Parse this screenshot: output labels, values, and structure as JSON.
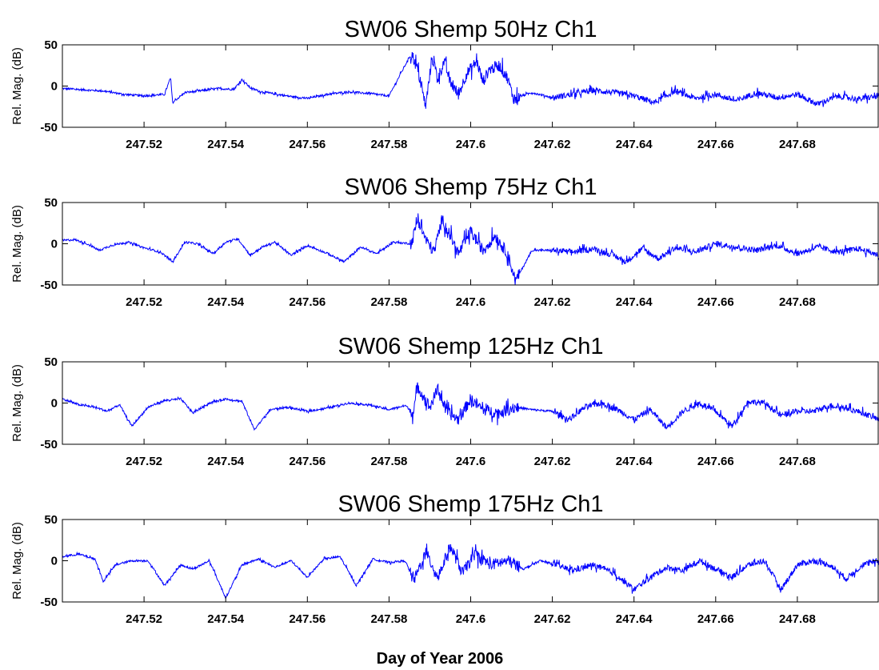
{
  "figure": {
    "xlabel": "Day of Year 2006"
  },
  "chart_data": [
    {
      "type": "line",
      "title": "SW06 Shemp 50Hz Ch1",
      "ylabel": "Rel. Mag. (dB)",
      "xlim": [
        247.5,
        247.7
      ],
      "ylim": [
        -50,
        50
      ],
      "xticks": [
        247.52,
        247.54,
        247.56,
        247.58,
        247.6,
        247.62,
        247.64,
        247.66,
        247.68
      ],
      "xtick_labels": [
        "247.52",
        "247.54",
        "247.56",
        "247.58",
        "247.6",
        "247.62",
        "247.64",
        "247.66",
        "247.68"
      ],
      "yticks": [
        -50,
        0,
        50
      ],
      "ytick_labels": [
        "-50",
        "0",
        "50"
      ],
      "color": "#0000ff",
      "series": [
        {
          "x": [
            247.5,
            247.51,
            247.515,
            247.52,
            247.525,
            247.5265,
            247.527,
            247.53,
            247.535,
            247.538,
            247.542,
            247.544,
            247.546,
            247.548,
            247.55,
            247.555,
            247.56,
            247.565,
            247.57,
            247.575,
            247.58,
            247.5855,
            247.587,
            247.589,
            247.5905,
            247.592,
            247.5935,
            247.595,
            247.597,
            247.599,
            247.6015,
            247.603,
            247.6045,
            247.607,
            247.609,
            247.6105,
            247.615,
            247.62,
            247.625,
            247.63,
            247.635,
            247.64,
            247.645,
            247.65,
            247.655,
            247.66,
            247.665,
            247.67,
            247.675,
            247.68,
            247.685,
            247.69,
            247.695,
            247.7
          ],
          "y": [
            -3,
            -6,
            -10,
            -12,
            -10,
            10,
            -20,
            -8,
            -5,
            -3,
            -4,
            8,
            -2,
            -6,
            -8,
            -12,
            -15,
            -10,
            -7,
            -9,
            -12,
            40,
            20,
            -25,
            35,
            10,
            30,
            5,
            -10,
            15,
            30,
            5,
            20,
            25,
            10,
            -15,
            -8,
            -14,
            -10,
            -5,
            -8,
            -12,
            -20,
            -6,
            -15,
            -10,
            -18,
            -8,
            -14,
            -10,
            -22,
            -12,
            -16,
            -12
          ]
        }
      ]
    },
    {
      "type": "line",
      "title": "SW06 Shemp 75Hz Ch1",
      "ylabel": "Rel. Mag. (dB)",
      "xlim": [
        247.5,
        247.7
      ],
      "ylim": [
        -50,
        50
      ],
      "xticks": [
        247.52,
        247.54,
        247.56,
        247.58,
        247.6,
        247.62,
        247.64,
        247.66,
        247.68
      ],
      "xtick_labels": [
        "247.52",
        "247.54",
        "247.56",
        "247.58",
        "247.6",
        "247.62",
        "247.64",
        "247.66",
        "247.68"
      ],
      "yticks": [
        -50,
        0,
        50
      ],
      "ytick_labels": [
        "-50",
        "0",
        "50"
      ],
      "color": "#0000ff",
      "series": [
        {
          "x": [
            247.5,
            247.503,
            247.506,
            247.509,
            247.512,
            247.516,
            247.52,
            247.524,
            247.527,
            247.53,
            247.533,
            247.537,
            247.54,
            247.543,
            247.546,
            247.549,
            247.552,
            247.556,
            247.56,
            247.565,
            247.569,
            247.573,
            247.577,
            247.581,
            247.5855,
            247.587,
            247.589,
            247.591,
            247.593,
            247.595,
            247.597,
            247.6,
            247.603,
            247.606,
            247.609,
            247.611,
            247.615,
            247.62,
            247.625,
            247.63,
            247.635,
            247.638,
            247.642,
            247.646,
            247.65,
            247.655,
            247.66,
            247.665,
            247.67,
            247.675,
            247.68,
            247.685,
            247.69,
            247.695,
            247.7
          ],
          "y": [
            4,
            5,
            0,
            -8,
            -2,
            2,
            -5,
            -10,
            -22,
            2,
            0,
            -12,
            2,
            6,
            -14,
            -4,
            2,
            -14,
            -2,
            -12,
            -22,
            -4,
            -12,
            2,
            0,
            30,
            5,
            -10,
            30,
            10,
            -12,
            15,
            -8,
            10,
            -12,
            -45,
            -8,
            -8,
            -10,
            -6,
            -14,
            -22,
            -6,
            -18,
            -5,
            -10,
            0,
            -4,
            -8,
            -2,
            -12,
            -4,
            -10,
            -6,
            -14
          ]
        }
      ]
    },
    {
      "type": "line",
      "title": "SW06 Shemp 125Hz Ch1",
      "ylabel": "Rel. Mag. (dB)",
      "xlim": [
        247.5,
        247.7
      ],
      "ylim": [
        -50,
        50
      ],
      "xticks": [
        247.52,
        247.54,
        247.56,
        247.58,
        247.6,
        247.62,
        247.64,
        247.66,
        247.68
      ],
      "xtick_labels": [
        "247.52",
        "247.54",
        "247.56",
        "247.58",
        "247.6",
        "247.62",
        "247.64",
        "247.66",
        "247.68"
      ],
      "yticks": [
        -50,
        0,
        50
      ],
      "ytick_labels": [
        "-50",
        "0",
        "50"
      ],
      "color": "#0000ff",
      "series": [
        {
          "x": [
            247.5,
            247.504,
            247.508,
            247.511,
            247.514,
            247.517,
            247.521,
            247.525,
            247.529,
            247.532,
            247.536,
            247.54,
            247.544,
            247.547,
            247.551,
            247.555,
            247.56,
            247.565,
            247.57,
            247.575,
            247.58,
            247.584,
            247.586,
            247.587,
            247.59,
            247.592,
            247.594,
            247.597,
            247.6,
            247.603,
            247.607,
            247.611,
            247.615,
            247.62,
            247.624,
            247.628,
            247.632,
            247.636,
            247.64,
            247.644,
            247.648,
            247.652,
            247.656,
            247.66,
            247.664,
            247.668,
            247.672,
            247.676,
            247.68,
            247.684,
            247.688,
            247.692,
            247.696,
            247.7
          ],
          "y": [
            5,
            -2,
            -5,
            -10,
            -2,
            -28,
            -5,
            3,
            5,
            -12,
            0,
            5,
            2,
            -32,
            -8,
            -5,
            -10,
            -6,
            0,
            -2,
            -8,
            -3,
            -12,
            20,
            -5,
            18,
            -10,
            -20,
            5,
            -8,
            -12,
            -5,
            -8,
            -10,
            -20,
            -5,
            0,
            -8,
            -20,
            -8,
            -30,
            -10,
            0,
            -10,
            -28,
            2,
            0,
            -15,
            -10,
            -10,
            -3,
            -6,
            -12,
            -20
          ]
        }
      ]
    },
    {
      "type": "line",
      "title": "SW06 Shemp 175Hz Ch1",
      "ylabel": "Rel. Mag. (dB)",
      "xlim": [
        247.5,
        247.7
      ],
      "ylim": [
        -50,
        50
      ],
      "xticks": [
        247.52,
        247.54,
        247.56,
        247.58,
        247.6,
        247.62,
        247.64,
        247.66,
        247.68
      ],
      "xtick_labels": [
        "247.52",
        "247.54",
        "247.56",
        "247.58",
        "247.6",
        "247.62",
        "247.64",
        "247.66",
        "247.68"
      ],
      "yticks": [
        -50,
        0,
        50
      ],
      "ytick_labels": [
        "-50",
        "0",
        "50"
      ],
      "color": "#0000ff",
      "series": [
        {
          "x": [
            247.5,
            247.504,
            247.508,
            247.51,
            247.513,
            247.517,
            247.521,
            247.525,
            247.529,
            247.532,
            247.536,
            247.54,
            247.544,
            247.548,
            247.552,
            247.556,
            247.56,
            247.564,
            247.568,
            247.572,
            247.576,
            247.58,
            247.584,
            247.586,
            247.589,
            247.592,
            247.595,
            247.598,
            247.601,
            247.605,
            247.609,
            247.613,
            247.617,
            247.621,
            247.625,
            247.63,
            247.635,
            247.64,
            247.644,
            247.648,
            247.652,
            247.656,
            247.66,
            247.664,
            247.668,
            247.672,
            247.676,
            247.68,
            247.684,
            247.688,
            247.692,
            247.696,
            247.7
          ],
          "y": [
            5,
            8,
            2,
            -25,
            -5,
            0,
            0,
            -30,
            -5,
            -10,
            0,
            -45,
            -5,
            2,
            -8,
            0,
            -20,
            2,
            5,
            -30,
            2,
            -2,
            0,
            -25,
            10,
            -20,
            18,
            -15,
            8,
            -5,
            0,
            -10,
            0,
            -5,
            -12,
            -5,
            -15,
            -35,
            -20,
            -8,
            -12,
            0,
            -10,
            -20,
            -5,
            0,
            -35,
            -5,
            0,
            -5,
            -22,
            -5,
            0
          ]
        }
      ]
    }
  ]
}
